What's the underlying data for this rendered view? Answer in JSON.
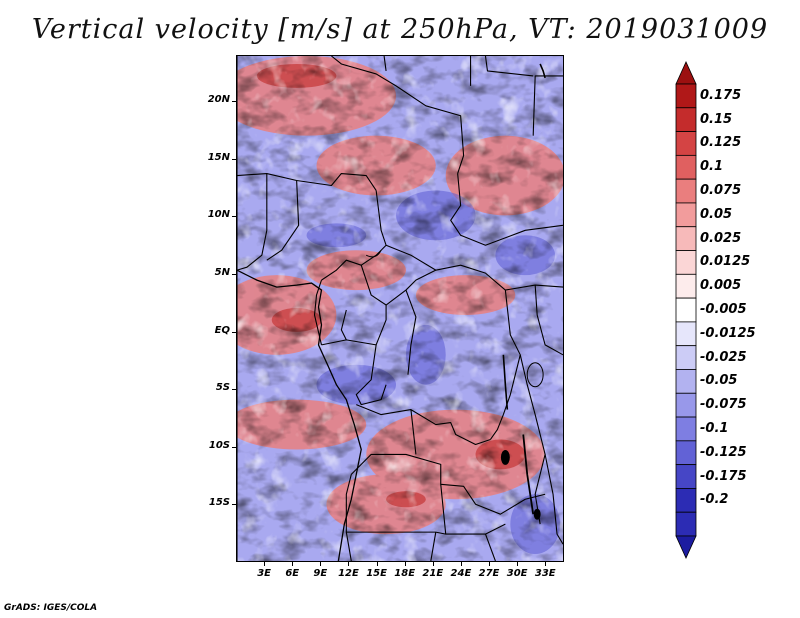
{
  "title": "Vertical velocity [m/s] at 250hPa, VT: 2019031009",
  "credit": "GrADS: IGES/COLA",
  "map": {
    "lat_range": [
      -20,
      24
    ],
    "lon_range": [
      0,
      35
    ],
    "lat_labels": [
      {
        "lat": 20,
        "text": "20N"
      },
      {
        "lat": 15,
        "text": "15N"
      },
      {
        "lat": 10,
        "text": "10N"
      },
      {
        "lat": 5,
        "text": "5N"
      },
      {
        "lat": 0,
        "text": "EQ"
      },
      {
        "lat": -5,
        "text": "5S"
      },
      {
        "lat": -10,
        "text": "10S"
      },
      {
        "lat": -15,
        "text": "15S"
      }
    ],
    "lon_labels": [
      {
        "lon": 3,
        "text": "3E"
      },
      {
        "lon": 6,
        "text": "6E"
      },
      {
        "lon": 9,
        "text": "9E"
      },
      {
        "lon": 12,
        "text": "12E"
      },
      {
        "lon": 15,
        "text": "15E"
      },
      {
        "lon": 18,
        "text": "18E"
      },
      {
        "lon": 21,
        "text": "21E"
      },
      {
        "lon": 24,
        "text": "24E"
      },
      {
        "lon": 27,
        "text": "27E"
      },
      {
        "lon": 30,
        "text": "30E"
      },
      {
        "lon": 33,
        "text": "33E"
      }
    ]
  },
  "colorbar": {
    "levels": [
      {
        "label": "0.175",
        "color": "#b01818"
      },
      {
        "label": "0.15",
        "color": "#c42c2c"
      },
      {
        "label": "0.125",
        "color": "#d44444"
      },
      {
        "label": "0.1",
        "color": "#e06060"
      },
      {
        "label": "0.075",
        "color": "#ea7e7e"
      },
      {
        "label": "0.05",
        "color": "#f29c9c"
      },
      {
        "label": "0.025",
        "color": "#f7baba"
      },
      {
        "label": "0.0125",
        "color": "#fbd6d6"
      },
      {
        "label": "0.005",
        "color": "#fdecec"
      },
      {
        "label": "-0.005",
        "color": "#ffffff"
      },
      {
        "label": "-0.0125",
        "color": "#e6e6fb"
      },
      {
        "label": "-0.025",
        "color": "#ccccf6"
      },
      {
        "label": "-0.05",
        "color": "#b2b2f0"
      },
      {
        "label": "-0.075",
        "color": "#9898ea"
      },
      {
        "label": "-0.1",
        "color": "#7e7ee2"
      },
      {
        "label": "-0.125",
        "color": "#6262d6"
      },
      {
        "label": "-0.175",
        "color": "#4646c6"
      },
      {
        "label": "-0.2",
        "color": "#2c2cb4"
      }
    ],
    "top_color": "#9c1010",
    "bottom_color": "#1c1ca0"
  }
}
